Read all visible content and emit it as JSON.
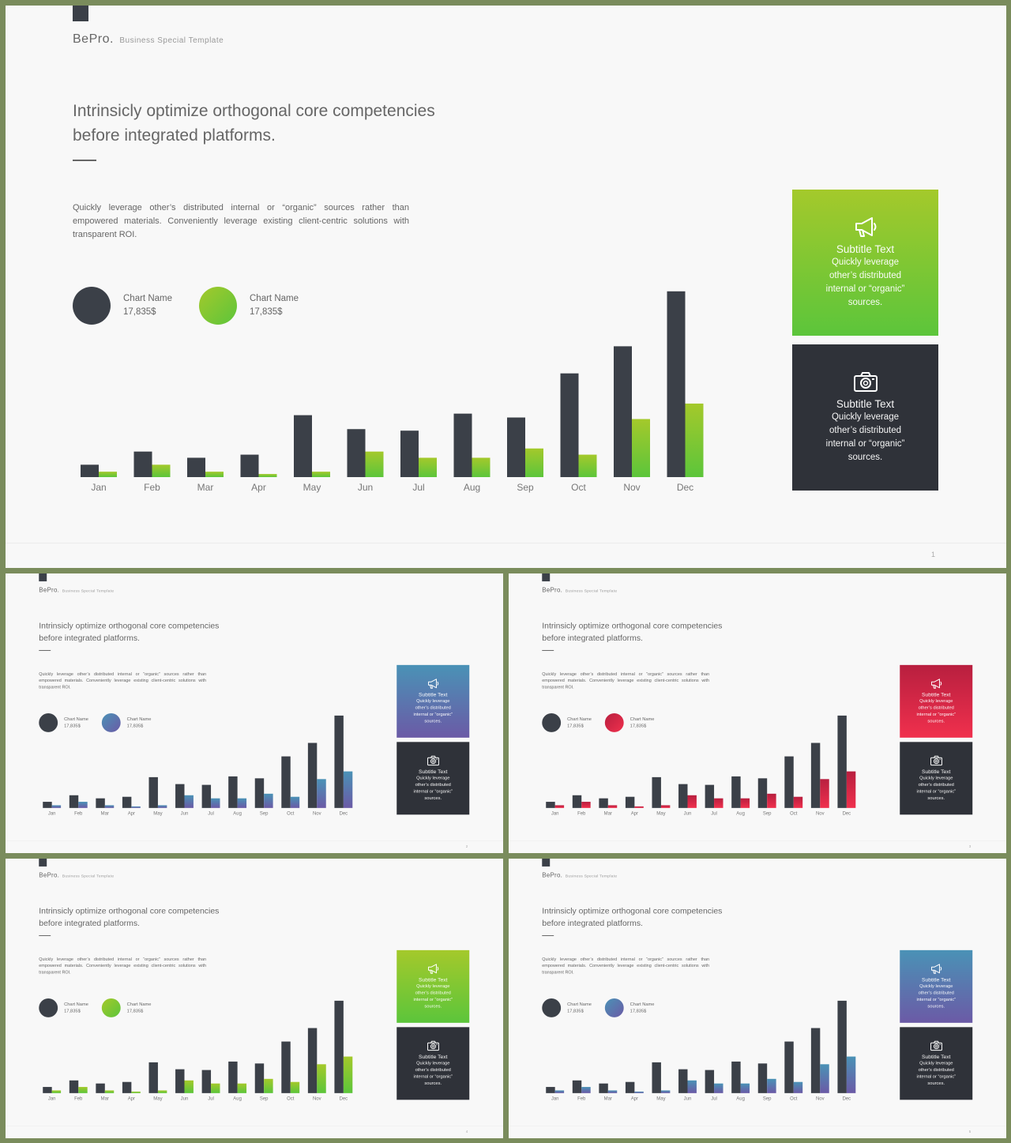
{
  "slides": [
    {
      "num": "1",
      "accent": "green"
    },
    {
      "num": "2",
      "accent": "blue"
    },
    {
      "num": "3",
      "accent": "red"
    },
    {
      "num": "4",
      "accent": "green"
    },
    {
      "num": "5",
      "accent": "blue"
    }
  ],
  "content": {
    "brand": {
      "name": "BePro.",
      "tagline": "Business  Special  Template"
    },
    "headline": "Intrinsicly optimize orthogonal core competencies before integrated platforms.",
    "paragraph": "Quickly leverage other’s distributed internal or “organic” sources rather than empowered materials. Conveniently leverage existing client-centric solutions with transparent ROI.",
    "legend": [
      {
        "name": "Chart Name",
        "value": "17,835$"
      },
      {
        "name": "Chart Name",
        "value": "17,835$"
      }
    ],
    "cards": [
      {
        "icon": "megaphone-icon",
        "title": "Subtitle Text",
        "body": "Quickly leverage other’s distributed internal or “organic” sources."
      },
      {
        "icon": "camera-icon",
        "title": "Subtitle Text",
        "body": "Quickly leverage other’s distributed internal or “organic” sources."
      }
    ]
  },
  "colors": {
    "dark": "#3b4048",
    "card_dark": "#2f3239",
    "background": "#7a8c5c",
    "green": [
      "#a4c92b",
      "#5cc53b"
    ],
    "blue": [
      "#4a92b6",
      "#6b5aa6"
    ],
    "red": [
      "#b81f3f",
      "#f0304d"
    ]
  },
  "chart_data": {
    "type": "bar",
    "categories": [
      "Jan",
      "Feb",
      "Mar",
      "Apr",
      "May",
      "Jun",
      "Jul",
      "Aug",
      "Sep",
      "Oct",
      "Nov",
      "Dec"
    ],
    "series": [
      {
        "values": [
          16,
          33,
          25,
          29,
          80,
          62,
          60,
          82,
          77,
          134,
          169,
          240
        ]
      },
      {
        "values": [
          7,
          16,
          7,
          4,
          7,
          33,
          25,
          25,
          37,
          29,
          75,
          95
        ]
      }
    ],
    "ylim": [
      0,
      250
    ],
    "grid": false,
    "legend": "none"
  }
}
